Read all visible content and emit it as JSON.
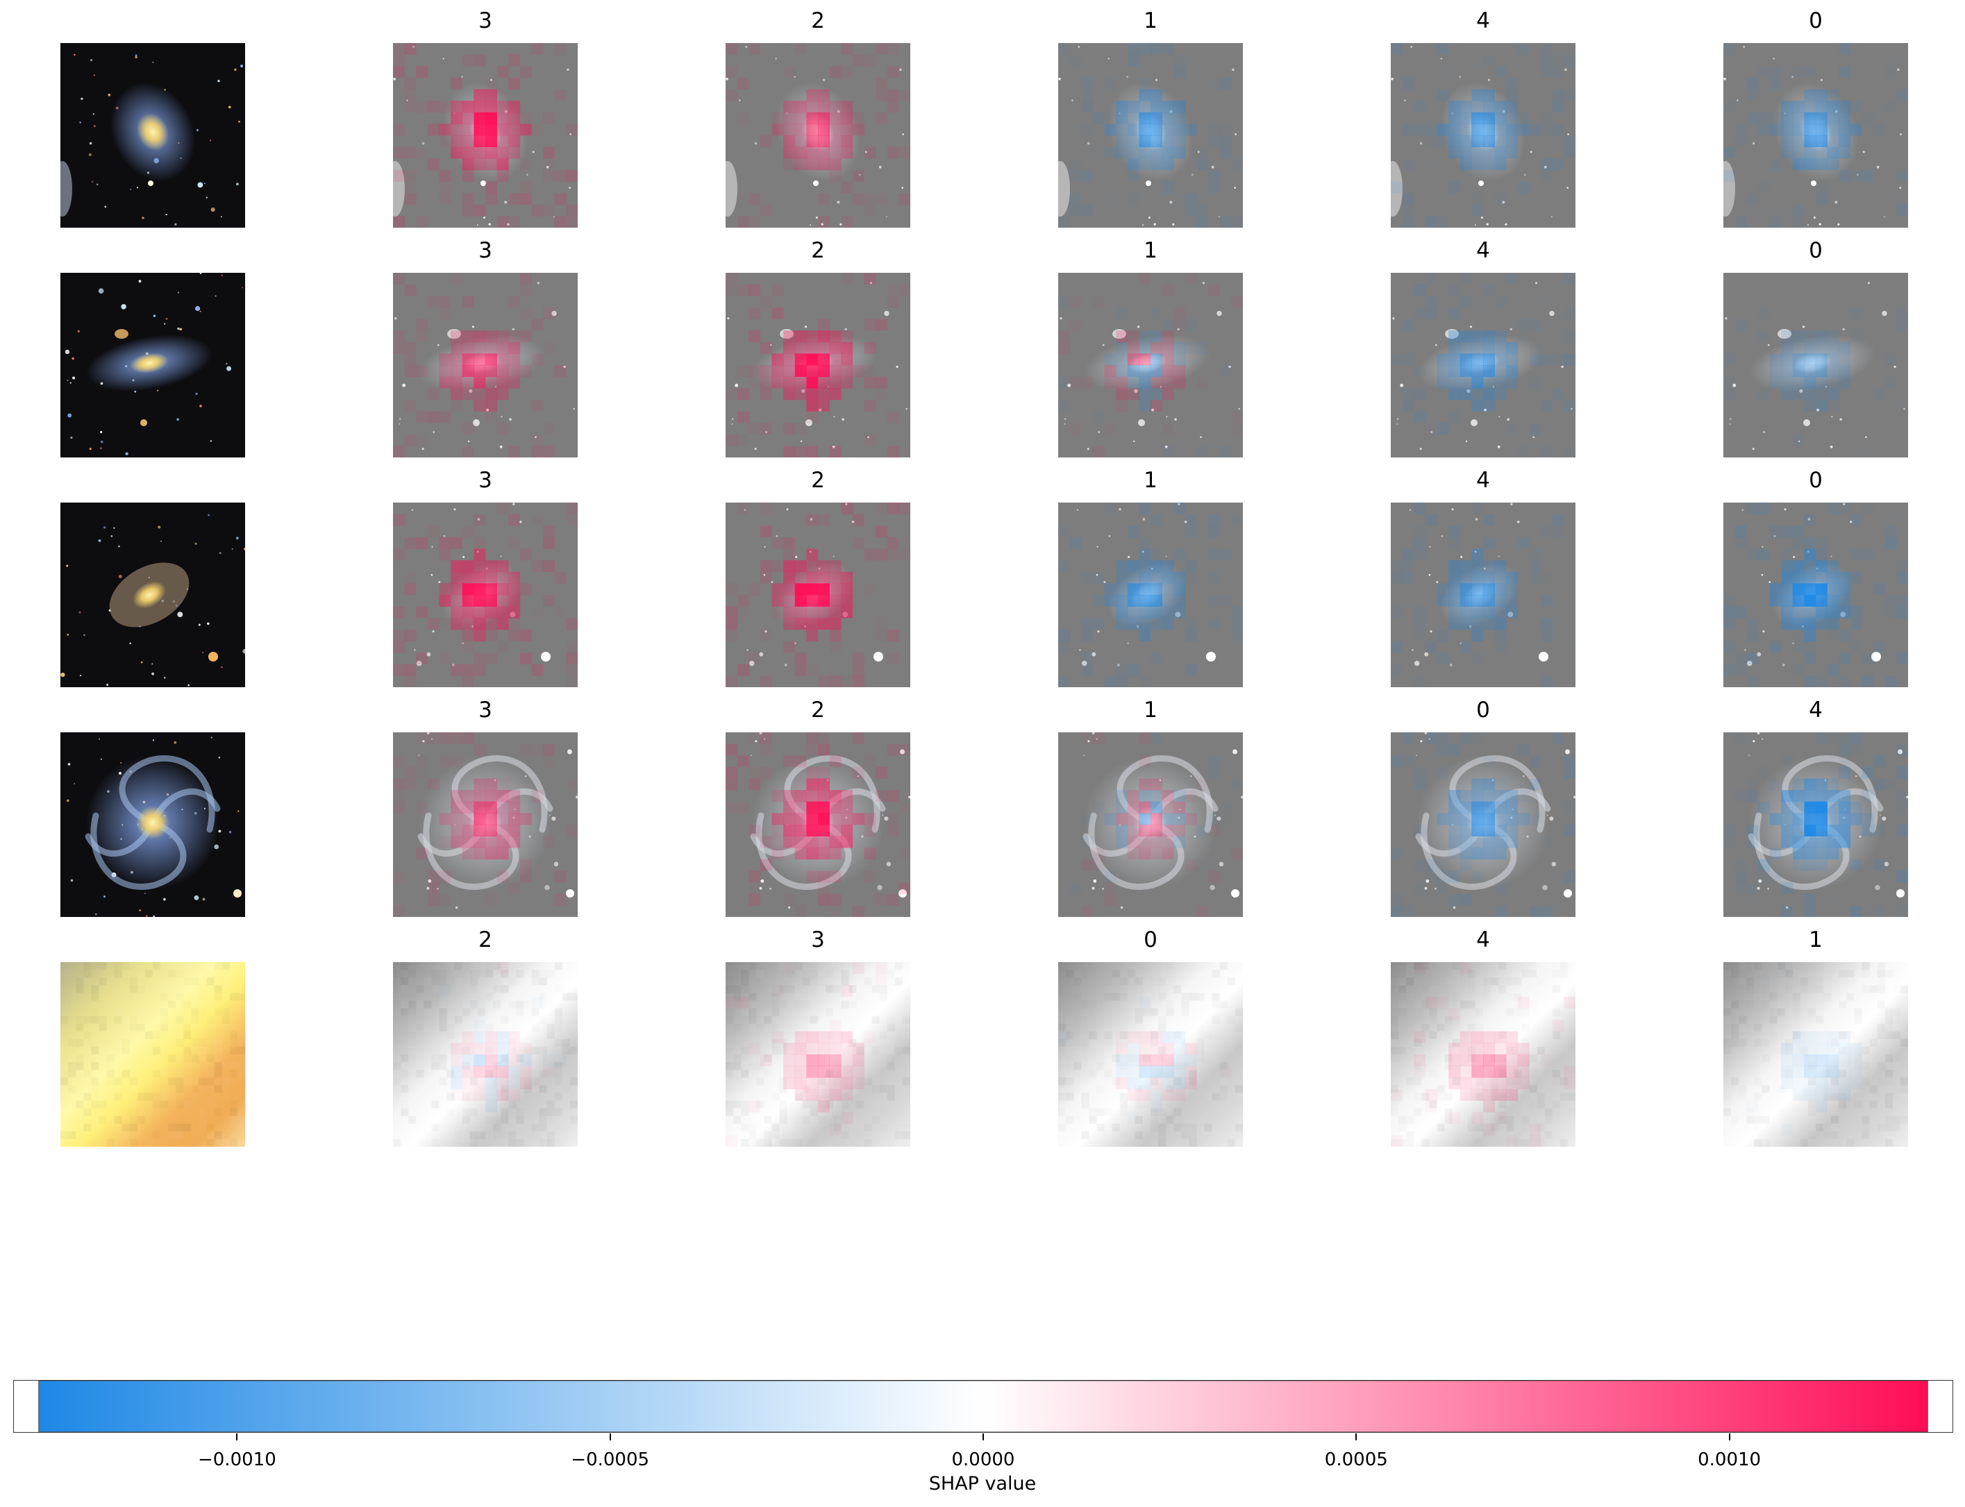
{
  "chart_data": {
    "type": "heatmap",
    "description_kind": "shap_image_plot",
    "rows": [
      {
        "image": "face-on spiral galaxy with bright yellow core on dark starfield",
        "titles": [
          "3",
          "2",
          "1",
          "4",
          "0"
        ],
        "attribution": [
          "positive-strong",
          "positive-medium",
          "negative-medium",
          "negative-medium",
          "negative-medium"
        ]
      },
      {
        "image": "inclined spiral galaxy with small companion, dark starfield",
        "titles": [
          "3",
          "2",
          "1",
          "4",
          "0"
        ],
        "attribution": [
          "positive-medium",
          "positive-strong",
          "mixed-weak",
          "negative-medium",
          "negative-weak"
        ]
      },
      {
        "image": "elliptical galaxy with bright star lower right, dark starfield",
        "titles": [
          "3",
          "2",
          "1",
          "4",
          "0"
        ],
        "attribution": [
          "positive-strong",
          "positive-strong",
          "negative-medium",
          "negative-medium",
          "negative-strong"
        ]
      },
      {
        "image": "grand-design spiral galaxy with bright core, dark starfield",
        "titles": [
          "3",
          "2",
          "1",
          "0",
          "4"
        ],
        "attribution": [
          "positive-medium",
          "positive-strong",
          "mixed-weak",
          "negative-medium",
          "negative-strong"
        ]
      },
      {
        "image": "blurred diagonal yellow-orange band, low resolution",
        "titles": [
          "2",
          "3",
          "0",
          "4",
          "1"
        ],
        "attribution": [
          "mixed-faint",
          "positive-weak",
          "mixed-faint",
          "positive-weak",
          "negative-faint"
        ]
      }
    ],
    "colorbar": {
      "label": "SHAP value",
      "range": [
        -0.0013,
        0.0013
      ],
      "ticks": [
        -0.001,
        -0.0005,
        0.0,
        0.0005,
        0.001
      ],
      "tick_labels": [
        "−0.0010",
        "−0.0005",
        "0.0000",
        "0.0005",
        "0.0010"
      ],
      "colors": {
        "negative": "#1e88e5",
        "zero": "#ffffff",
        "positive": "#ff0d57"
      }
    }
  }
}
